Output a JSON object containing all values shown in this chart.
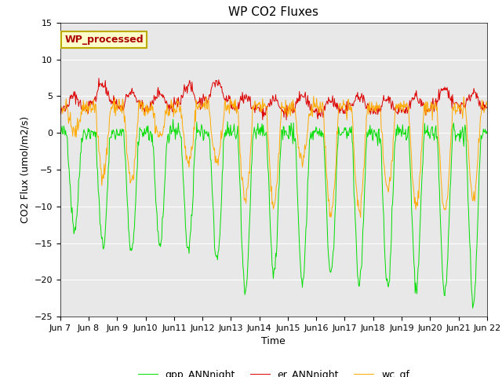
{
  "title": "WP CO2 Fluxes",
  "xlabel": "Time",
  "ylabel_text": "CO2 Flux (umol/m2/s)",
  "ylim": [
    -25,
    15
  ],
  "yticks": [
    -25,
    -20,
    -15,
    -10,
    -5,
    0,
    5,
    10,
    15
  ],
  "colors": {
    "gpp": "#00dd00",
    "er": "#dd0000",
    "wc": "#ffaa00"
  },
  "legend_labels": [
    "gpp_ANNnight",
    "er_ANNnight",
    "wc_gf"
  ],
  "annotation_text": "WP_processed",
  "annotation_color": "#aa0000",
  "annotation_bg": "#ffffcc",
  "annotation_border": "#bbaa00",
  "bg_color": "#e8e8e8",
  "grid_color": "#ffffff",
  "title_fontsize": 11,
  "axis_fontsize": 9,
  "tick_fontsize": 8,
  "n_days": 15,
  "ppd": 48,
  "day_amplitudes_gpp": [
    13,
    15.5,
    16.5,
    15,
    16,
    17,
    22,
    19,
    20,
    19,
    20.5,
    21,
    21,
    22,
    23
  ],
  "day_amplitudes_er": [
    5.0,
    6.5,
    5.5,
    5.5,
    6.5,
    7.0,
    5.0,
    4.5,
    5.0,
    4.5,
    5.0,
    4.5,
    5.0,
    6.0,
    5.5
  ],
  "day_amplitudes_wc": [
    3.5,
    9.0,
    10.0,
    4.0,
    7.5,
    7.5,
    12.5,
    13.5,
    7.5,
    15.0,
    14.0,
    11.5,
    13.5,
    14.5,
    12.5
  ],
  "xtick_days": [
    7,
    8,
    9,
    10,
    11,
    12,
    13,
    14,
    15,
    16,
    17,
    18,
    19,
    20,
    21,
    22
  ],
  "xtick_labels": [
    "Jun 7",
    "Jun 8",
    "Jun 9",
    "Jun10",
    "Jun11",
    "Jun12",
    "Jun13",
    "Jun14",
    "Jun15",
    "Jun16",
    "Jun17",
    "Jun18",
    "Jun19",
    "Jun20",
    "Jun21",
    "Jun 22"
  ]
}
